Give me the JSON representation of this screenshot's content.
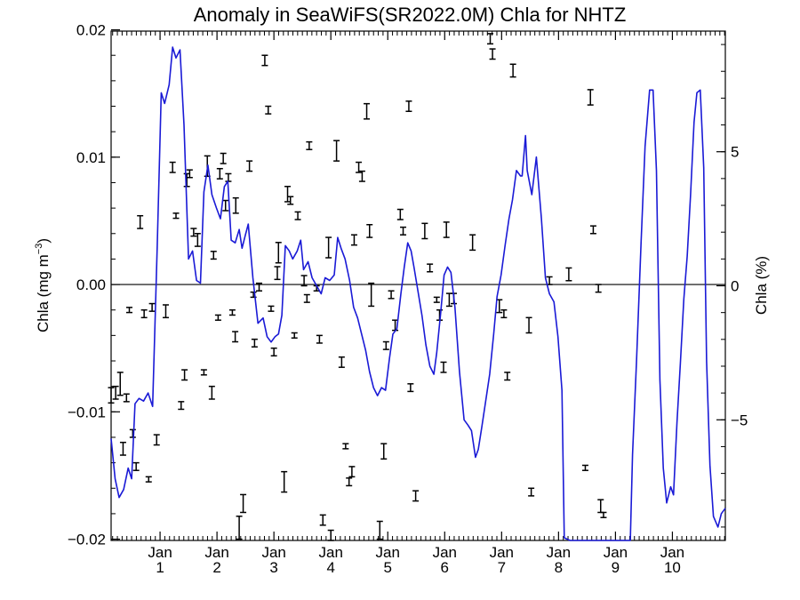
{
  "chart_data": {
    "type": "line",
    "title": "Anomaly in SeaWiFS(SR2022.0M) Chla for NHTZ",
    "ylabel_left": "Chla (mg m",
    "ylabel_left_sup": "−3",
    "ylabel_left_close": ")",
    "ylabel_right": "Chla (%)",
    "xlabel": "",
    "x_ticks": [
      {
        "x": 1,
        "top": "Jan",
        "bottom": "1"
      },
      {
        "x": 2,
        "top": "Jan",
        "bottom": "2"
      },
      {
        "x": 3,
        "top": "Jan",
        "bottom": "3"
      },
      {
        "x": 4,
        "top": "Jan",
        "bottom": "4"
      },
      {
        "x": 5,
        "top": "Jan",
        "bottom": "5"
      },
      {
        "x": 6,
        "top": "Jan",
        "bottom": "6"
      },
      {
        "x": 7,
        "top": "Jan",
        "bottom": "7"
      },
      {
        "x": 8,
        "top": "Jan",
        "bottom": "8"
      },
      {
        "x": 9,
        "top": "Jan",
        "bottom": "9"
      },
      {
        "x": 10,
        "top": "Jan",
        "bottom": "10"
      }
    ],
    "xlim": [
      0.14,
      10.93
    ],
    "ylim_left": [
      -0.0201,
      0.0199
    ],
    "ylim_right": [
      -9.5,
      9.5
    ],
    "y_ticks_left": [
      {
        "v": 0.02,
        "label": "0.02"
      },
      {
        "v": 0.01,
        "label": "0.01"
      },
      {
        "v": 0.0,
        "label": "0.00"
      },
      {
        "v": -0.01,
        "label": "−0.01"
      },
      {
        "v": -0.02,
        "label": "−0.02"
      }
    ],
    "y_ticks_right": [
      {
        "v": 5,
        "label": "5"
      },
      {
        "v": 0,
        "label": "0"
      },
      {
        "v": -5,
        "label": "−5"
      }
    ],
    "zero_line": 0,
    "series": [
      {
        "kind": "line",
        "axis": "right",
        "color": "#1a1ad6",
        "points": [
          [
            0.14,
            -5.7
          ],
          [
            0.21,
            -7.2
          ],
          [
            0.28,
            -7.9
          ],
          [
            0.36,
            -7.6
          ],
          [
            0.44,
            -6.8
          ],
          [
            0.5,
            -7.2
          ],
          [
            0.56,
            -4.4
          ],
          [
            0.63,
            -4.2
          ],
          [
            0.71,
            -4.3
          ],
          [
            0.79,
            -4.0
          ],
          [
            0.87,
            -4.5
          ],
          [
            0.95,
            1.5
          ],
          [
            1.02,
            7.2
          ],
          [
            1.08,
            6.8
          ],
          [
            1.16,
            7.5
          ],
          [
            1.22,
            8.9
          ],
          [
            1.28,
            8.5
          ],
          [
            1.35,
            8.8
          ],
          [
            1.42,
            6.0
          ],
          [
            1.5,
            1.0
          ],
          [
            1.57,
            1.3
          ],
          [
            1.64,
            0.2
          ],
          [
            1.71,
            0.1
          ],
          [
            1.77,
            3.5
          ],
          [
            1.84,
            4.5
          ],
          [
            1.91,
            3.4
          ],
          [
            1.99,
            2.9
          ],
          [
            2.06,
            2.5
          ],
          [
            2.13,
            3.7
          ],
          [
            2.19,
            3.9
          ],
          [
            2.25,
            1.7
          ],
          [
            2.32,
            1.6
          ],
          [
            2.39,
            2.1
          ],
          [
            2.44,
            1.4
          ],
          [
            2.5,
            1.9
          ],
          [
            2.55,
            2.3
          ],
          [
            2.63,
            0.3
          ],
          [
            2.72,
            -1.4
          ],
          [
            2.81,
            -1.2
          ],
          [
            2.88,
            -1.9
          ],
          [
            2.95,
            -2.1
          ],
          [
            3.02,
            -1.9
          ],
          [
            3.08,
            -1.8
          ],
          [
            3.14,
            -1.1
          ],
          [
            3.2,
            1.5
          ],
          [
            3.27,
            1.3
          ],
          [
            3.33,
            1.0
          ],
          [
            3.41,
            1.3
          ],
          [
            3.47,
            1.7
          ],
          [
            3.52,
            0.6
          ],
          [
            3.6,
            0.9
          ],
          [
            3.67,
            0.3
          ],
          [
            3.75,
            0.0
          ],
          [
            3.83,
            -0.3
          ],
          [
            3.9,
            0.3
          ],
          [
            3.98,
            0.2
          ],
          [
            4.06,
            0.4
          ],
          [
            4.12,
            1.8
          ],
          [
            4.18,
            1.4
          ],
          [
            4.25,
            1.0
          ],
          [
            4.33,
            0.2
          ],
          [
            4.4,
            -0.8
          ],
          [
            4.47,
            -1.2
          ],
          [
            4.54,
            -1.8
          ],
          [
            4.61,
            -2.4
          ],
          [
            4.68,
            -3.2
          ],
          [
            4.75,
            -3.8
          ],
          [
            4.82,
            -4.1
          ],
          [
            4.89,
            -3.8
          ],
          [
            4.96,
            -3.9
          ],
          [
            5.03,
            -2.7
          ],
          [
            5.09,
            -1.8
          ],
          [
            5.16,
            -1.6
          ],
          [
            5.23,
            -0.3
          ],
          [
            5.29,
            0.7
          ],
          [
            5.35,
            1.6
          ],
          [
            5.41,
            1.3
          ],
          [
            5.46,
            0.7
          ],
          [
            5.53,
            -0.2
          ],
          [
            5.6,
            -1.1
          ],
          [
            5.67,
            -2.2
          ],
          [
            5.74,
            -3.0
          ],
          [
            5.81,
            -3.3
          ],
          [
            5.86,
            -2.5
          ],
          [
            5.93,
            -1.0
          ],
          [
            5.99,
            0.4
          ],
          [
            6.05,
            0.7
          ],
          [
            6.11,
            0.5
          ],
          [
            6.18,
            -0.8
          ],
          [
            6.26,
            -3.2
          ],
          [
            6.34,
            -5.0
          ],
          [
            6.41,
            -5.2
          ],
          [
            6.47,
            -5.4
          ],
          [
            6.54,
            -6.4
          ],
          [
            6.59,
            -6.1
          ],
          [
            6.65,
            -5.3
          ],
          [
            6.72,
            -4.3
          ],
          [
            6.79,
            -3.3
          ],
          [
            6.86,
            -1.8
          ],
          [
            6.92,
            -0.4
          ],
          [
            6.99,
            0.4
          ],
          [
            7.06,
            1.5
          ],
          [
            7.13,
            2.5
          ],
          [
            7.19,
            3.2
          ],
          [
            7.26,
            4.3
          ],
          [
            7.33,
            4.1
          ],
          [
            7.36,
            4.1
          ],
          [
            7.42,
            5.6
          ],
          [
            7.45,
            4.3
          ],
          [
            7.53,
            3.4
          ],
          [
            7.61,
            4.8
          ],
          [
            7.7,
            2.5
          ],
          [
            7.77,
            0.3
          ],
          [
            7.84,
            -0.3
          ],
          [
            7.92,
            -0.6
          ],
          [
            7.99,
            -1.9
          ],
          [
            8.06,
            -3.9
          ],
          [
            8.1,
            -9.4
          ],
          [
            8.2,
            -9.5
          ],
          [
            8.27,
            -9.5
          ],
          [
            8.34,
            -9.5
          ],
          [
            8.41,
            -9.5
          ],
          [
            8.48,
            -9.5
          ],
          [
            8.55,
            -9.5
          ],
          [
            8.62,
            -9.5
          ],
          [
            8.7,
            -9.5
          ],
          [
            8.77,
            -9.5
          ],
          [
            8.84,
            -9.5
          ],
          [
            8.91,
            -9.5
          ],
          [
            8.98,
            -9.5
          ],
          [
            9.05,
            -9.5
          ],
          [
            9.12,
            -9.5
          ],
          [
            9.19,
            -9.5
          ],
          [
            9.26,
            -9.5
          ],
          [
            9.3,
            -6.3
          ],
          [
            9.37,
            -2.8
          ],
          [
            9.45,
            1.6
          ],
          [
            9.52,
            5.2
          ],
          [
            9.6,
            7.3
          ],
          [
            9.66,
            7.3
          ],
          [
            9.72,
            4.3
          ],
          [
            9.78,
            -3.5
          ],
          [
            9.84,
            -6.8
          ],
          [
            9.9,
            -8.1
          ],
          [
            9.97,
            -7.5
          ],
          [
            10.02,
            -7.8
          ],
          [
            10.08,
            -5.1
          ],
          [
            10.14,
            -2.9
          ],
          [
            10.2,
            -0.5
          ],
          [
            10.26,
            1.1
          ],
          [
            10.32,
            3.4
          ],
          [
            10.38,
            6.1
          ],
          [
            10.43,
            7.2
          ],
          [
            10.49,
            7.3
          ],
          [
            10.55,
            4.4
          ],
          [
            10.6,
            -2.8
          ],
          [
            10.66,
            -6.7
          ],
          [
            10.72,
            -8.6
          ],
          [
            10.8,
            -9.0
          ],
          [
            10.86,
            -8.5
          ],
          [
            10.93,
            -8.3
          ]
        ]
      }
    ],
    "errorbars": {
      "axis": "left",
      "color": "#000000",
      "points": [
        [
          0.14,
          -0.0087,
          0.0006
        ],
        [
          0.22,
          -0.0085,
          0.0005
        ],
        [
          0.3,
          -0.0078,
          0.0009
        ],
        [
          0.35,
          -0.0129,
          0.0005
        ],
        [
          0.41,
          -0.0089,
          0.0003
        ],
        [
          0.46,
          -0.002,
          0.0002
        ],
        [
          0.52,
          -0.0117,
          0.0003
        ],
        [
          0.58,
          -0.0143,
          0.0003
        ],
        [
          0.65,
          0.0049,
          0.0005
        ],
        [
          0.72,
          -0.0023,
          0.0003
        ],
        [
          0.8,
          -0.0153,
          0.0002
        ],
        [
          0.86,
          -0.0018,
          0.0003
        ],
        [
          0.94,
          -0.0122,
          0.0004
        ],
        [
          1.1,
          -0.0021,
          0.0005
        ],
        [
          1.22,
          0.0092,
          0.0004
        ],
        [
          1.28,
          0.0054,
          0.0002
        ],
        [
          1.37,
          -0.0095,
          0.0003
        ],
        [
          1.43,
          -0.0071,
          0.0004
        ],
        [
          1.47,
          0.0082,
          0.0005
        ],
        [
          1.52,
          0.0087,
          0.0003
        ],
        [
          1.59,
          0.0041,
          0.0003
        ],
        [
          1.66,
          0.0035,
          0.0005
        ],
        [
          1.77,
          -0.0069,
          0.0002
        ],
        [
          1.83,
          0.0093,
          0.0008
        ],
        [
          1.91,
          -0.0085,
          0.0005
        ],
        [
          1.94,
          0.0023,
          0.0003
        ],
        [
          2.02,
          -0.0026,
          0.0002
        ],
        [
          2.05,
          0.0087,
          0.0004
        ],
        [
          2.11,
          0.0099,
          0.0004
        ],
        [
          2.15,
          0.0062,
          0.0004
        ],
        [
          2.2,
          0.0084,
          0.0003
        ],
        [
          2.27,
          -0.0022,
          0.0002
        ],
        [
          2.32,
          -0.0041,
          0.0004
        ],
        [
          2.33,
          0.0062,
          0.0006
        ],
        [
          2.39,
          -0.0191,
          0.0009
        ],
        [
          2.46,
          -0.0172,
          0.0007
        ],
        [
          2.57,
          0.0093,
          0.0004
        ],
        [
          2.64,
          -0.0008,
          0.0002
        ],
        [
          2.66,
          -0.0046,
          0.0003
        ],
        [
          2.74,
          -0.0002,
          0.0003
        ],
        [
          2.84,
          0.0176,
          0.0004
        ],
        [
          2.9,
          0.0137,
          0.0003
        ],
        [
          2.95,
          -0.0019,
          0.0002
        ],
        [
          3.0,
          -0.0053,
          0.0003
        ],
        [
          3.06,
          0.0009,
          0.0005
        ],
        [
          3.08,
          0.0025,
          0.0008
        ],
        [
          3.18,
          -0.0155,
          0.0008
        ],
        [
          3.24,
          0.0071,
          0.0006
        ],
        [
          3.29,
          0.0066,
          0.0003
        ],
        [
          3.36,
          -0.004,
          0.0002
        ],
        [
          3.42,
          0.0054,
          0.0003
        ],
        [
          3.53,
          0.0003,
          0.0004
        ],
        [
          3.58,
          -0.0011,
          0.0003
        ],
        [
          3.62,
          0.0109,
          0.0003
        ],
        [
          3.75,
          -0.0003,
          0.0002
        ],
        [
          3.8,
          -0.0043,
          0.0003
        ],
        [
          3.86,
          -0.0185,
          0.0004
        ],
        [
          3.96,
          0.0029,
          0.0008
        ],
        [
          4.0,
          -0.0197,
          0.0004
        ],
        [
          4.1,
          0.0105,
          0.0008
        ],
        [
          4.19,
          -0.0061,
          0.0004
        ],
        [
          4.26,
          -0.0127,
          0.0002
        ],
        [
          4.32,
          -0.0155,
          0.0003
        ],
        [
          4.37,
          -0.0147,
          0.0004
        ],
        [
          4.41,
          0.0035,
          0.0004
        ],
        [
          4.49,
          0.0092,
          0.0004
        ],
        [
          4.55,
          0.0085,
          0.0004
        ],
        [
          4.63,
          0.0136,
          0.0006
        ],
        [
          4.68,
          0.0042,
          0.0005
        ],
        [
          4.71,
          -0.0008,
          0.0009
        ],
        [
          4.86,
          -0.0193,
          0.0007
        ],
        [
          4.93,
          -0.0131,
          0.0006
        ],
        [
          4.97,
          -0.0048,
          0.0003
        ],
        [
          5.06,
          -0.0008,
          0.0003
        ],
        [
          5.13,
          -0.0032,
          0.0004
        ],
        [
          5.22,
          0.0055,
          0.0004
        ],
        [
          5.27,
          0.0042,
          0.0003
        ],
        [
          5.37,
          0.014,
          0.0004
        ],
        [
          5.4,
          -0.0081,
          0.0003
        ],
        [
          5.49,
          -0.0166,
          0.0004
        ],
        [
          5.65,
          0.0042,
          0.0006
        ],
        [
          5.74,
          0.0013,
          0.0003
        ],
        [
          5.86,
          -0.0012,
          0.0002
        ],
        [
          5.91,
          -0.0024,
          0.0004
        ],
        [
          5.98,
          -0.0065,
          0.0004
        ],
        [
          6.03,
          0.0043,
          0.0006
        ],
        [
          6.08,
          -0.0012,
          0.0005
        ],
        [
          6.16,
          -0.0011,
          0.0004
        ],
        [
          6.49,
          0.0033,
          0.0006
        ],
        [
          6.8,
          0.0193,
          0.0004
        ],
        [
          6.84,
          0.0181,
          0.0004
        ],
        [
          6.96,
          -0.0017,
          0.0005
        ],
        [
          7.04,
          -0.0023,
          0.0003
        ],
        [
          7.1,
          -0.0072,
          0.0003
        ],
        [
          7.2,
          0.0168,
          0.0005
        ],
        [
          7.48,
          -0.0032,
          0.0006
        ],
        [
          7.52,
          -0.0163,
          0.0003
        ],
        [
          7.84,
          0.0003,
          0.0003
        ],
        [
          8.18,
          0.0008,
          0.0005
        ],
        [
          8.47,
          -0.0144,
          0.0002
        ],
        [
          8.56,
          0.0147,
          0.0006
        ],
        [
          8.61,
          0.0043,
          0.0003
        ],
        [
          8.7,
          -0.0003,
          0.0003
        ],
        [
          8.74,
          -0.0174,
          0.0005
        ],
        [
          8.79,
          -0.0181,
          0.0002
        ]
      ]
    }
  }
}
